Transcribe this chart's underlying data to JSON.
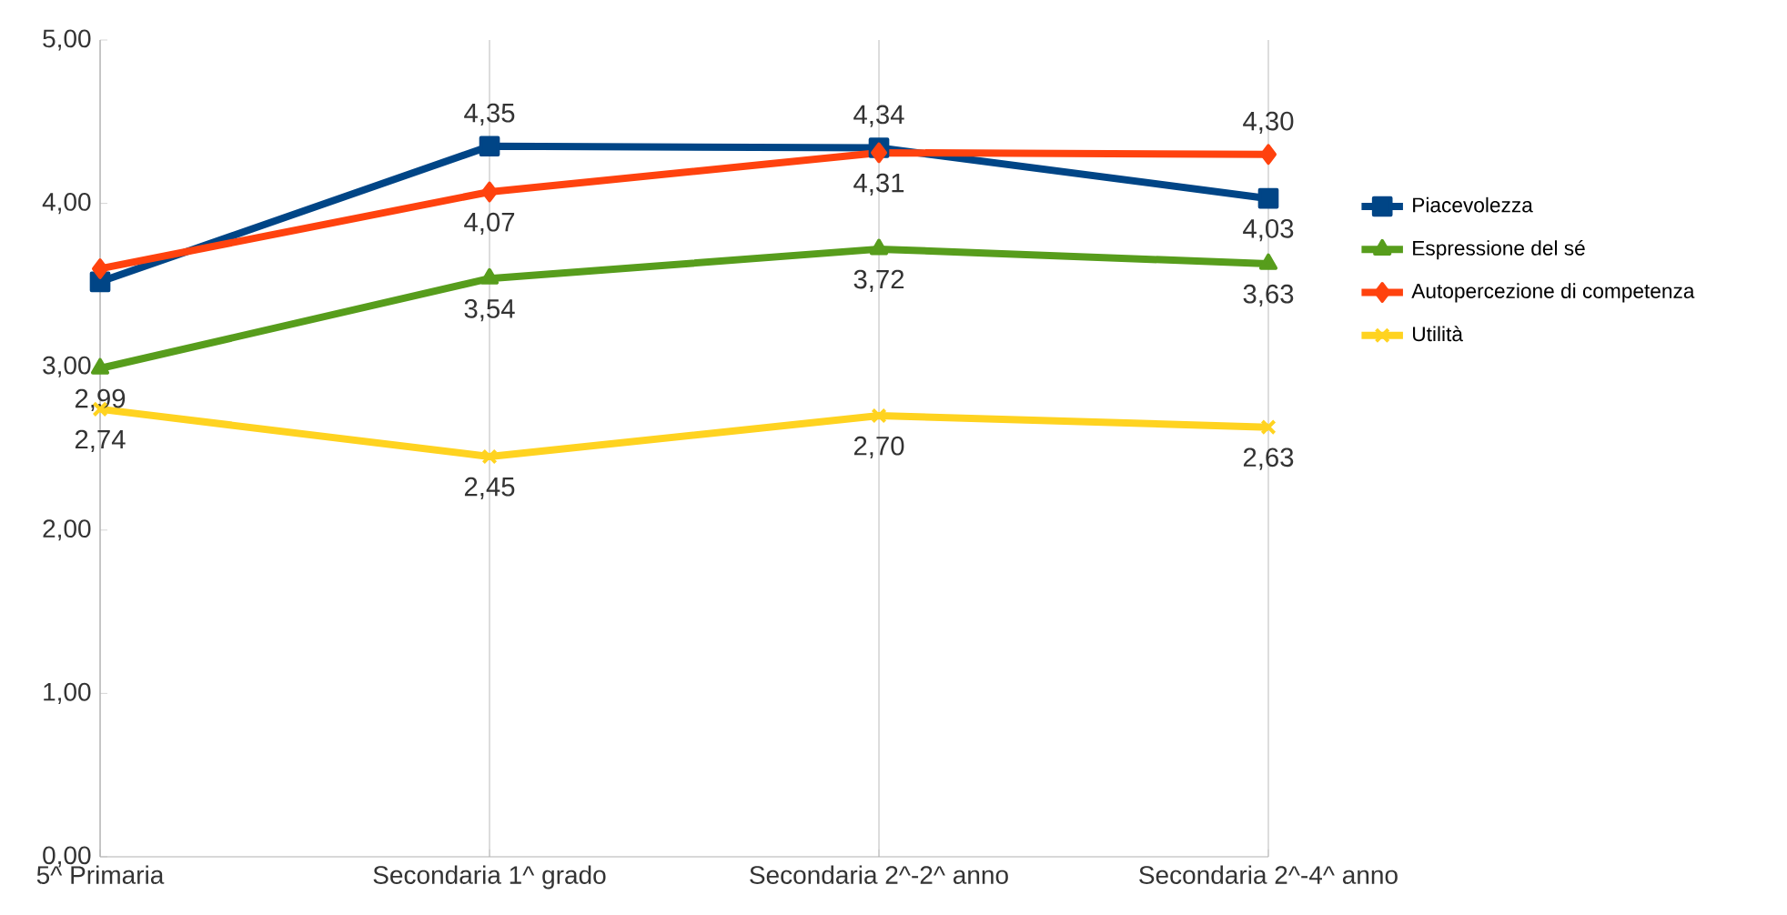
{
  "chart_data": {
    "type": "line",
    "categories": [
      "5^ Primaria",
      "Secondaria 1^ grado",
      "Secondaria 2^-2^ anno",
      "Secondaria 2^-4^ anno"
    ],
    "ylim": [
      0,
      5
    ],
    "yticks": [
      {
        "value": 0,
        "label": "0,00"
      },
      {
        "value": 1,
        "label": "1,00"
      },
      {
        "value": 2,
        "label": "2,00"
      },
      {
        "value": 3,
        "label": "3,00"
      },
      {
        "value": 4,
        "label": "4,00"
      },
      {
        "value": 5,
        "label": "5,00"
      }
    ],
    "grid": "x",
    "legend": "right",
    "series": [
      {
        "name": "Piacevolezza",
        "color": "#004586",
        "marker": "square",
        "values": [
          3.52,
          4.35,
          4.34,
          4.03
        ],
        "value_labels": [
          null,
          "4,35",
          "4,34",
          "4,03"
        ]
      },
      {
        "name": "Espressione del sé",
        "color": "#579d1c",
        "marker": "triangle",
        "values": [
          2.99,
          3.54,
          3.72,
          3.63
        ],
        "value_labels": [
          "2,99",
          "3,54",
          "3,72",
          "3,63"
        ]
      },
      {
        "name": "Autopercezione di competenza",
        "color": "#ff420e",
        "marker": "diamond",
        "values": [
          3.6,
          4.07,
          4.31,
          4.3
        ],
        "value_labels": [
          null,
          "4,07",
          "4,31",
          "4,30"
        ]
      },
      {
        "name": "Utilità",
        "color": "#ffd320",
        "marker": "cross",
        "values": [
          2.74,
          2.45,
          2.7,
          2.63
        ],
        "value_labels": [
          "2,74",
          "2,45",
          "2,70",
          "2,63"
        ]
      }
    ]
  }
}
